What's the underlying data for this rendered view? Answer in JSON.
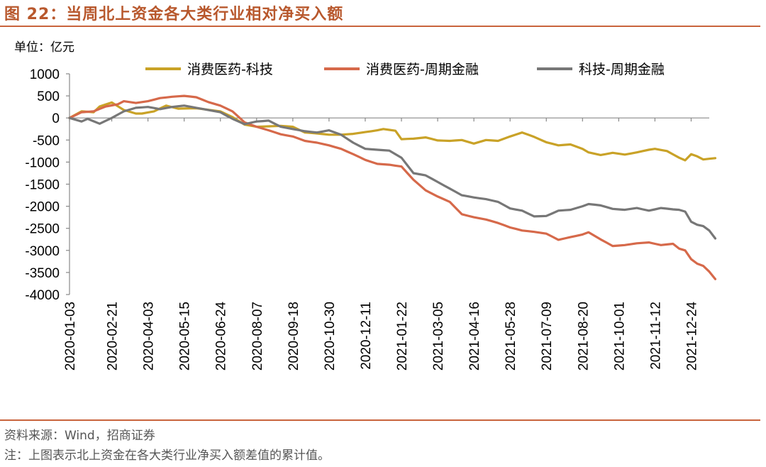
{
  "header": {
    "title": "图 22：当周北上资金各大类行业相对净买入额"
  },
  "unit_label": "单位：亿元",
  "footer": {
    "source": "资料来源：Wind，招商证券",
    "note": "注：上图表示北上资金在各大类行业净买入额差值的累计值。"
  },
  "chart_data": {
    "type": "line",
    "title": "图 22：当周北上资金各大类行业相对净买入额",
    "ylabel": "单位：亿元",
    "xlabel": "",
    "ylim": [
      -4000,
      1000
    ],
    "yticks": [
      1000,
      500,
      0,
      -500,
      -1000,
      -1500,
      -2000,
      -2500,
      -3000,
      -3500,
      -4000
    ],
    "x_tick_labels": [
      "2020-01-03",
      "2020-02-21",
      "2020-04-03",
      "2020-05-15",
      "2020-06-24",
      "2020-08-07",
      "2020-09-18",
      "2020-10-30",
      "2020-12-11",
      "2021-01-22",
      "2021-03-05",
      "2021-04-16",
      "2021-05-28",
      "2021-07-09",
      "2021-08-20",
      "2021-10-01",
      "2021-11-12",
      "2021-12-24"
    ],
    "x_tick_positions": [
      0,
      7,
      13,
      19,
      25,
      31,
      37,
      43,
      49,
      55,
      61,
      67,
      73,
      79,
      85,
      91,
      97,
      103
    ],
    "num_points": 105,
    "grid": false,
    "legend_position": "top",
    "series": [
      {
        "name": "消费医药-科技",
        "color": "#c9a227",
        "anchors": [
          [
            0,
            0
          ],
          [
            2,
            150
          ],
          [
            4,
            130
          ],
          [
            5,
            260
          ],
          [
            7,
            350
          ],
          [
            9,
            180
          ],
          [
            11,
            100
          ],
          [
            12,
            100
          ],
          [
            14,
            150
          ],
          [
            16,
            280
          ],
          [
            18,
            210
          ],
          [
            21,
            220
          ],
          [
            25,
            150
          ],
          [
            27,
            20
          ],
          [
            29,
            -150
          ],
          [
            31,
            -200
          ],
          [
            35,
            -180
          ],
          [
            37,
            -200
          ],
          [
            39,
            -330
          ],
          [
            41,
            -350
          ],
          [
            43,
            -380
          ],
          [
            45,
            -380
          ],
          [
            47,
            -360
          ],
          [
            49,
            -320
          ],
          [
            51,
            -280
          ],
          [
            52,
            -250
          ],
          [
            54,
            -290
          ],
          [
            55,
            -480
          ],
          [
            57,
            -470
          ],
          [
            59,
            -440
          ],
          [
            61,
            -510
          ],
          [
            63,
            -520
          ],
          [
            65,
            -500
          ],
          [
            67,
            -580
          ],
          [
            69,
            -500
          ],
          [
            71,
            -520
          ],
          [
            73,
            -420
          ],
          [
            75,
            -330
          ],
          [
            77,
            -430
          ],
          [
            79,
            -550
          ],
          [
            81,
            -620
          ],
          [
            83,
            -600
          ],
          [
            85,
            -700
          ],
          [
            86,
            -780
          ],
          [
            88,
            -840
          ],
          [
            90,
            -790
          ],
          [
            92,
            -830
          ],
          [
            94,
            -780
          ],
          [
            96,
            -720
          ],
          [
            97,
            -700
          ],
          [
            99,
            -750
          ],
          [
            101,
            -900
          ],
          [
            102,
            -960
          ],
          [
            103,
            -820
          ],
          [
            104,
            -870
          ],
          [
            105,
            -940
          ],
          [
            107,
            -910
          ]
        ]
      },
      {
        "name": "消费医药-周期金融",
        "color": "#d6694a",
        "anchors": [
          [
            0,
            0
          ],
          [
            2,
            130
          ],
          [
            4,
            150
          ],
          [
            6,
            260
          ],
          [
            8,
            310
          ],
          [
            9,
            380
          ],
          [
            11,
            340
          ],
          [
            13,
            380
          ],
          [
            15,
            450
          ],
          [
            17,
            480
          ],
          [
            19,
            500
          ],
          [
            21,
            470
          ],
          [
            23,
            360
          ],
          [
            25,
            280
          ],
          [
            27,
            150
          ],
          [
            29,
            -100
          ],
          [
            31,
            -200
          ],
          [
            33,
            -280
          ],
          [
            35,
            -370
          ],
          [
            37,
            -420
          ],
          [
            39,
            -520
          ],
          [
            41,
            -560
          ],
          [
            43,
            -620
          ],
          [
            45,
            -700
          ],
          [
            47,
            -820
          ],
          [
            49,
            -950
          ],
          [
            51,
            -1040
          ],
          [
            53,
            -1060
          ],
          [
            55,
            -1100
          ],
          [
            57,
            -1400
          ],
          [
            59,
            -1640
          ],
          [
            61,
            -1780
          ],
          [
            63,
            -1900
          ],
          [
            65,
            -2180
          ],
          [
            67,
            -2250
          ],
          [
            69,
            -2300
          ],
          [
            71,
            -2380
          ],
          [
            73,
            -2480
          ],
          [
            75,
            -2550
          ],
          [
            77,
            -2580
          ],
          [
            79,
            -2620
          ],
          [
            81,
            -2760
          ],
          [
            83,
            -2700
          ],
          [
            85,
            -2640
          ],
          [
            86,
            -2590
          ],
          [
            88,
            -2750
          ],
          [
            90,
            -2900
          ],
          [
            92,
            -2880
          ],
          [
            94,
            -2840
          ],
          [
            96,
            -2820
          ],
          [
            98,
            -2880
          ],
          [
            100,
            -2850
          ],
          [
            101,
            -2960
          ],
          [
            102,
            -3000
          ],
          [
            103,
            -3200
          ],
          [
            104,
            -3300
          ],
          [
            105,
            -3350
          ],
          [
            106,
            -3480
          ],
          [
            107,
            -3650
          ]
        ]
      },
      {
        "name": "科技-周期金融",
        "color": "#777777",
        "anchors": [
          [
            0,
            0
          ],
          [
            2,
            -80
          ],
          [
            3,
            -20
          ],
          [
            5,
            -130
          ],
          [
            7,
            0
          ],
          [
            9,
            150
          ],
          [
            11,
            230
          ],
          [
            13,
            250
          ],
          [
            15,
            200
          ],
          [
            17,
            250
          ],
          [
            19,
            280
          ],
          [
            21,
            230
          ],
          [
            23,
            180
          ],
          [
            25,
            130
          ],
          [
            27,
            -20
          ],
          [
            29,
            -140
          ],
          [
            31,
            -80
          ],
          [
            33,
            -60
          ],
          [
            35,
            -200
          ],
          [
            37,
            -250
          ],
          [
            39,
            -300
          ],
          [
            41,
            -330
          ],
          [
            43,
            -280
          ],
          [
            45,
            -380
          ],
          [
            47,
            -560
          ],
          [
            49,
            -700
          ],
          [
            51,
            -720
          ],
          [
            53,
            -740
          ],
          [
            55,
            -900
          ],
          [
            57,
            -1250
          ],
          [
            59,
            -1300
          ],
          [
            61,
            -1450
          ],
          [
            63,
            -1600
          ],
          [
            65,
            -1750
          ],
          [
            67,
            -1800
          ],
          [
            69,
            -1840
          ],
          [
            71,
            -1900
          ],
          [
            73,
            -2050
          ],
          [
            75,
            -2100
          ],
          [
            77,
            -2230
          ],
          [
            79,
            -2220
          ],
          [
            81,
            -2100
          ],
          [
            83,
            -2080
          ],
          [
            85,
            -2000
          ],
          [
            86,
            -1950
          ],
          [
            88,
            -1980
          ],
          [
            90,
            -2060
          ],
          [
            92,
            -2080
          ],
          [
            94,
            -2040
          ],
          [
            96,
            -2100
          ],
          [
            98,
            -2040
          ],
          [
            100,
            -2070
          ],
          [
            101,
            -2080
          ],
          [
            102,
            -2120
          ],
          [
            103,
            -2350
          ],
          [
            104,
            -2420
          ],
          [
            105,
            -2450
          ],
          [
            106,
            -2550
          ],
          [
            107,
            -2730
          ]
        ]
      }
    ]
  }
}
